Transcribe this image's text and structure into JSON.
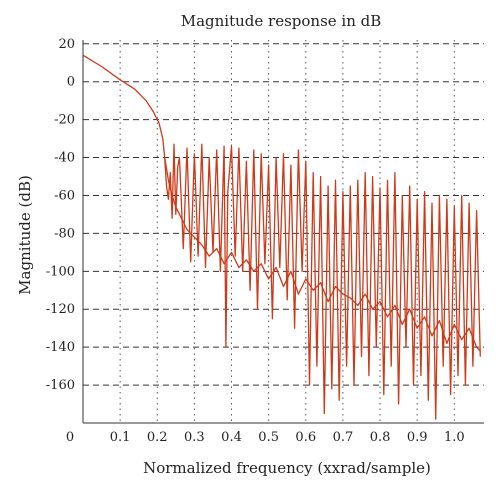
{
  "chart_data": {
    "type": "line",
    "title": "Magnitude response in dB",
    "xlabel": "Normalized frequency (xxrad/sample)",
    "ylabel": "Magnitude (dB)",
    "xlim": [
      0,
      1.08
    ],
    "ylim": [
      -180,
      22
    ],
    "xticks": [
      0.1,
      0.2,
      0.3,
      0.4,
      0.5,
      0.6,
      0.7,
      0.8,
      0.9,
      1.0
    ],
    "xtick_labels": [
      "0.1",
      "0.2",
      "0.3",
      "0.4",
      "0.5",
      "0.6",
      "0.7",
      "0.8",
      "0.9",
      "1.0"
    ],
    "x_origin_label": "0",
    "yticks": [
      20,
      0,
      -20,
      -40,
      -60,
      -80,
      -100,
      -120,
      -140,
      -160
    ],
    "ytick_labels": [
      "20",
      "0",
      "-20",
      "-40",
      "-60",
      "-80",
      "-100",
      "-120",
      "-140",
      "-160"
    ],
    "grid": true,
    "series": [
      {
        "color": "#cc3a1a",
        "x": [
          0,
          0.05,
          0.1,
          0.14,
          0.17,
          0.19,
          0.205,
          0.215,
          0.22,
          0.225,
          0.23,
          0.235,
          0.24,
          0.245,
          0.25,
          0.255,
          0.26,
          0.27,
          0.28,
          0.29,
          0.3,
          0.31,
          0.32,
          0.33,
          0.34,
          0.35,
          0.36,
          0.37,
          0.38,
          0.385,
          0.39,
          0.4,
          0.41,
          0.42,
          0.43,
          0.44,
          0.45,
          0.46,
          0.47,
          0.48,
          0.49,
          0.5,
          0.51,
          0.52,
          0.53,
          0.54,
          0.55,
          0.56,
          0.57,
          0.58,
          0.59,
          0.6,
          0.61,
          0.62,
          0.63,
          0.64,
          0.65,
          0.66,
          0.67,
          0.68,
          0.69,
          0.7,
          0.71,
          0.72,
          0.73,
          0.74,
          0.75,
          0.76,
          0.77,
          0.78,
          0.79,
          0.8,
          0.81,
          0.82,
          0.83,
          0.84,
          0.85,
          0.86,
          0.87,
          0.88,
          0.89,
          0.9,
          0.91,
          0.92,
          0.93,
          0.94,
          0.95,
          0.96,
          0.97,
          0.98,
          0.99,
          1.0,
          1.01,
          1.02,
          1.03,
          1.04,
          1.05,
          1.06,
          1.07
        ],
        "y": [
          14,
          8,
          1,
          -4,
          -10,
          -16,
          -22,
          -30,
          -40,
          -55,
          -62,
          -48,
          -72,
          -33,
          -70,
          -45,
          -40,
          -88,
          -35,
          -95,
          -38,
          -92,
          -33,
          -98,
          -40,
          -90,
          -36,
          -100,
          -34,
          -140,
          -58,
          -34,
          -92,
          -35,
          -100,
          -42,
          -110,
          -36,
          -120,
          -38,
          -96,
          -44,
          -125,
          -40,
          -98,
          -38,
          -115,
          -44,
          -130,
          -36,
          -100,
          -42,
          -160,
          -48,
          -150,
          -50,
          -175,
          -55,
          -162,
          -52,
          -168,
          -58,
          -150,
          -55,
          -160,
          -52,
          -145,
          -48,
          -155,
          -50,
          -140,
          -56,
          -165,
          -52,
          -150,
          -48,
          -170,
          -60,
          -140,
          -55,
          -160,
          -62,
          -155,
          -58,
          -168,
          -64,
          -178,
          -60,
          -150,
          -62,
          -165,
          -66,
          -155,
          -60,
          -160,
          -64,
          -150,
          -68,
          -145
        ]
      },
      {
        "color": "#cc3a1a",
        "x": [
          0.22,
          0.23,
          0.24,
          0.25,
          0.26,
          0.27,
          0.28,
          0.29,
          0.3,
          0.32,
          0.34,
          0.36,
          0.38,
          0.4,
          0.42,
          0.44,
          0.46,
          0.48,
          0.5,
          0.52,
          0.54,
          0.56,
          0.58,
          0.6,
          0.62,
          0.64,
          0.66,
          0.68,
          0.7,
          0.72,
          0.74,
          0.76,
          0.78,
          0.8,
          0.82,
          0.84,
          0.86,
          0.88,
          0.9,
          0.92,
          0.94,
          0.96,
          0.98,
          1.0,
          1.02,
          1.04,
          1.06,
          1.07
        ],
        "y": [
          -40,
          -52,
          -60,
          -66,
          -70,
          -74,
          -78,
          -80,
          -82,
          -86,
          -92,
          -88,
          -96,
          -90,
          -98,
          -94,
          -100,
          -96,
          -104,
          -98,
          -108,
          -100,
          -112,
          -104,
          -110,
          -106,
          -116,
          -108,
          -112,
          -114,
          -118,
          -112,
          -120,
          -116,
          -124,
          -118,
          -128,
          -120,
          -130,
          -124,
          -134,
          -126,
          -138,
          -128,
          -136,
          -130,
          -140,
          -142
        ]
      }
    ]
  }
}
